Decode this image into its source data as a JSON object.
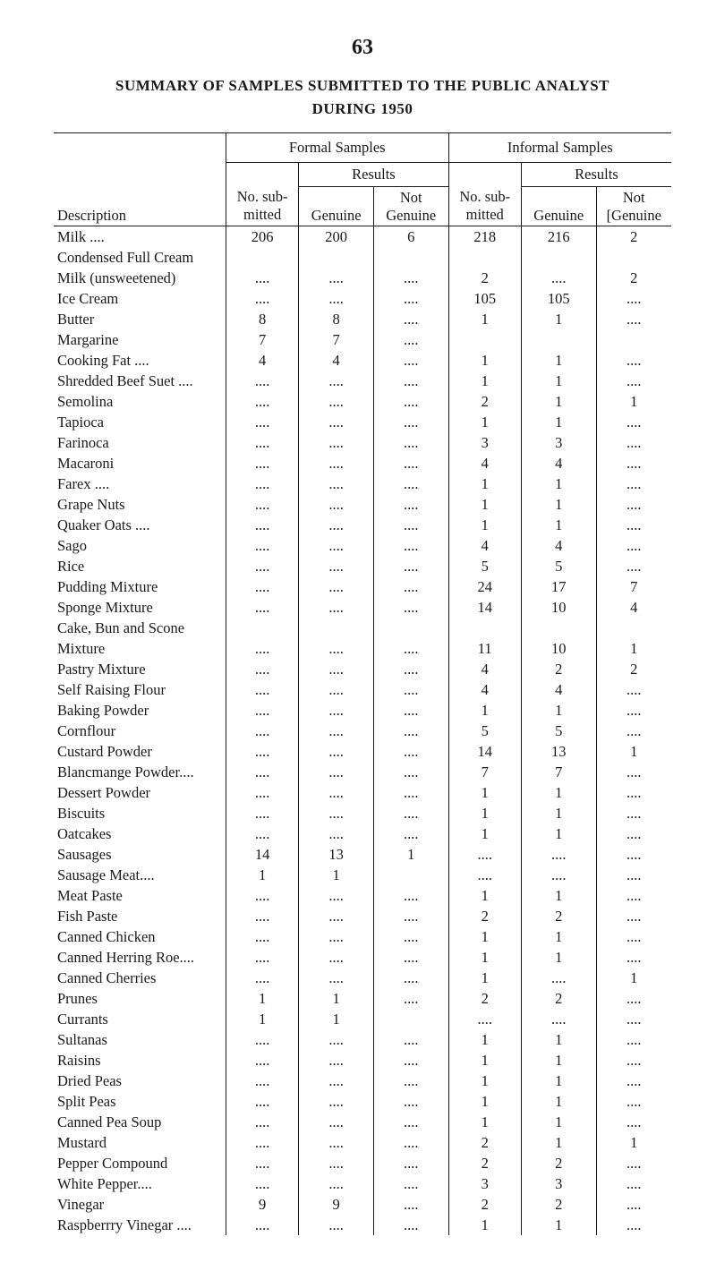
{
  "page_number": "63",
  "title_line1": "SUMMARY OF SAMPLES SUBMITTED TO THE PUBLIC ANALYST",
  "title_line2": "DURING 1950",
  "headers": {
    "formal_samples": "Formal Samples",
    "informal_samples": "Informal Samples",
    "results": "Results",
    "description": "Description",
    "no_submitted": "No. sub-",
    "no_submitted2": "mitted",
    "genuine": "Genuine",
    "not": "Not",
    "not_genuine": "[Genuine"
  },
  "rows": [
    {
      "desc": "Milk ....",
      "indent": false,
      "fn": "206",
      "fg": "200",
      "fng": "6",
      "in": "218",
      "ig": "216",
      "ing": "2"
    },
    {
      "desc": "Condensed Full Cream",
      "indent": false,
      "fn": "",
      "fg": "",
      "fng": "",
      "in": "",
      "ig": "",
      "ing": ""
    },
    {
      "desc": "Milk (unsweetened)",
      "indent": true,
      "fn": "....",
      "fg": "....",
      "fng": "....",
      "in": "2",
      "ig": "....",
      "ing": "2"
    },
    {
      "desc": "Ice Cream",
      "indent": false,
      "fn": "....",
      "fg": "....",
      "fng": "....",
      "in": "105",
      "ig": "105",
      "ing": "...."
    },
    {
      "desc": "Butter",
      "indent": false,
      "fn": "8",
      "fg": "8",
      "fng": "....",
      "in": "1",
      "ig": "1",
      "ing": "...."
    },
    {
      "desc": "Margarine",
      "indent": false,
      "fn": "7",
      "fg": "7",
      "fng": "....",
      "in": "",
      "ig": "",
      "ing": ""
    },
    {
      "desc": "Cooking Fat ....",
      "indent": false,
      "fn": "4",
      "fg": "4",
      "fng": "....",
      "in": "1",
      "ig": "1",
      "ing": "...."
    },
    {
      "desc": "Shredded Beef Suet ....",
      "indent": false,
      "fn": "....",
      "fg": "....",
      "fng": "....",
      "in": "1",
      "ig": "1",
      "ing": "...."
    },
    {
      "desc": "Semolina",
      "indent": false,
      "fn": "....",
      "fg": "....",
      "fng": "....",
      "in": "2",
      "ig": "1",
      "ing": "1"
    },
    {
      "desc": "Tapioca",
      "indent": false,
      "fn": "....",
      "fg": "....",
      "fng": "....",
      "in": "1",
      "ig": "1",
      "ing": "...."
    },
    {
      "desc": "Farinoca",
      "indent": false,
      "fn": "....",
      "fg": "....",
      "fng": "....",
      "in": "3",
      "ig": "3",
      "ing": "...."
    },
    {
      "desc": "Macaroni",
      "indent": false,
      "fn": "....",
      "fg": "....",
      "fng": "....",
      "in": "4",
      "ig": "4",
      "ing": "...."
    },
    {
      "desc": "Farex ....",
      "indent": false,
      "fn": "....",
      "fg": "....",
      "fng": "....",
      "in": "1",
      "ig": "1",
      "ing": "...."
    },
    {
      "desc": "Grape Nuts",
      "indent": false,
      "fn": "....",
      "fg": "....",
      "fng": "....",
      "in": "1",
      "ig": "1",
      "ing": "...."
    },
    {
      "desc": "Quaker Oats ....",
      "indent": false,
      "fn": "....",
      "fg": "....",
      "fng": "....",
      "in": "1",
      "ig": "1",
      "ing": "...."
    },
    {
      "desc": "Sago",
      "indent": false,
      "fn": "....",
      "fg": "....",
      "fng": "....",
      "in": "4",
      "ig": "4",
      "ing": "...."
    },
    {
      "desc": "Rice",
      "indent": false,
      "fn": "....",
      "fg": "....",
      "fng": "....",
      "in": "5",
      "ig": "5",
      "ing": "...."
    },
    {
      "desc": "Pudding Mixture",
      "indent": false,
      "fn": "....",
      "fg": "....",
      "fng": "....",
      "in": "24",
      "ig": "17",
      "ing": "7"
    },
    {
      "desc": "Sponge Mixture",
      "indent": false,
      "fn": "....",
      "fg": "....",
      "fng": "....",
      "in": "14",
      "ig": "10",
      "ing": "4"
    },
    {
      "desc": "Cake, Bun and Scone",
      "indent": false,
      "fn": "",
      "fg": "",
      "fng": "",
      "in": "",
      "ig": "",
      "ing": ""
    },
    {
      "desc": "Mixture",
      "indent": true,
      "fn": "....",
      "fg": "....",
      "fng": "....",
      "in": "11",
      "ig": "10",
      "ing": "1"
    },
    {
      "desc": "Pastry Mixture",
      "indent": false,
      "fn": "....",
      "fg": "....",
      "fng": "....",
      "in": "4",
      "ig": "2",
      "ing": "2"
    },
    {
      "desc": "Self Raising Flour",
      "indent": false,
      "fn": "....",
      "fg": "....",
      "fng": "....",
      "in": "4",
      "ig": "4",
      "ing": "...."
    },
    {
      "desc": "Baking Powder",
      "indent": false,
      "fn": "....",
      "fg": "....",
      "fng": "....",
      "in": "1",
      "ig": "1",
      "ing": "...."
    },
    {
      "desc": "Cornflour",
      "indent": false,
      "fn": "....",
      "fg": "....",
      "fng": "....",
      "in": "5",
      "ig": "5",
      "ing": "...."
    },
    {
      "desc": "Custard Powder",
      "indent": false,
      "fn": "....",
      "fg": "....",
      "fng": "....",
      "in": "14",
      "ig": "13",
      "ing": "1"
    },
    {
      "desc": "Blancmange Powder....",
      "indent": false,
      "fn": "....",
      "fg": "....",
      "fng": "....",
      "in": "7",
      "ig": "7",
      "ing": "...."
    },
    {
      "desc": "Dessert Powder",
      "indent": false,
      "fn": "....",
      "fg": "....",
      "fng": "....",
      "in": "1",
      "ig": "1",
      "ing": "...."
    },
    {
      "desc": "Biscuits",
      "indent": false,
      "fn": "....",
      "fg": "....",
      "fng": "....",
      "in": "1",
      "ig": "1",
      "ing": "...."
    },
    {
      "desc": "Oatcakes",
      "indent": false,
      "fn": "....",
      "fg": "....",
      "fng": "....",
      "in": "1",
      "ig": "1",
      "ing": "...."
    },
    {
      "desc": "Sausages",
      "indent": false,
      "fn": "14",
      "fg": "13",
      "fng": "1",
      "in": "....",
      "ig": "....",
      "ing": "...."
    },
    {
      "desc": "Sausage Meat....",
      "indent": false,
      "fn": "1",
      "fg": "1",
      "fng": "",
      "in": "....",
      "ig": "....",
      "ing": "...."
    },
    {
      "desc": "Meat Paste",
      "indent": false,
      "fn": "....",
      "fg": "....",
      "fng": "....",
      "in": "1",
      "ig": "1",
      "ing": "...."
    },
    {
      "desc": "Fish Paste",
      "indent": false,
      "fn": "....",
      "fg": "....",
      "fng": "....",
      "in": "2",
      "ig": "2",
      "ing": "...."
    },
    {
      "desc": "Canned Chicken",
      "indent": false,
      "fn": "....",
      "fg": "....",
      "fng": "....",
      "in": "1",
      "ig": "1",
      "ing": "...."
    },
    {
      "desc": "Canned Herring Roe....",
      "indent": false,
      "fn": "....",
      "fg": "....",
      "fng": "....",
      "in": "1",
      "ig": "1",
      "ing": "...."
    },
    {
      "desc": "Canned Cherries",
      "indent": false,
      "fn": "....",
      "fg": "....",
      "fng": "....",
      "in": "1",
      "ig": "....",
      "ing": "1"
    },
    {
      "desc": "Prunes",
      "indent": false,
      "fn": "1",
      "fg": "1",
      "fng": "....",
      "in": "2",
      "ig": "2",
      "ing": "...."
    },
    {
      "desc": "Currants",
      "indent": false,
      "fn": "1",
      "fg": "1",
      "fng": "",
      "in": "....",
      "ig": "....",
      "ing": "...."
    },
    {
      "desc": "Sultanas",
      "indent": false,
      "fn": "....",
      "fg": "....",
      "fng": "....",
      "in": "1",
      "ig": "1",
      "ing": "...."
    },
    {
      "desc": "Raisins",
      "indent": false,
      "fn": "....",
      "fg": "....",
      "fng": "....",
      "in": "1",
      "ig": "1",
      "ing": "...."
    },
    {
      "desc": "Dried Peas",
      "indent": false,
      "fn": "....",
      "fg": "....",
      "fng": "....",
      "in": "1",
      "ig": "1",
      "ing": "...."
    },
    {
      "desc": "Split Peas",
      "indent": false,
      "fn": "....",
      "fg": "....",
      "fng": "....",
      "in": "1",
      "ig": "1",
      "ing": "...."
    },
    {
      "desc": "Canned Pea Soup",
      "indent": false,
      "fn": "....",
      "fg": "....",
      "fng": "....",
      "in": "1",
      "ig": "1",
      "ing": "...."
    },
    {
      "desc": "Mustard",
      "indent": false,
      "fn": "....",
      "fg": "....",
      "fng": "....",
      "in": "2",
      "ig": "1",
      "ing": "1"
    },
    {
      "desc": "Pepper Compound",
      "indent": false,
      "fn": "....",
      "fg": "....",
      "fng": "....",
      "in": "2",
      "ig": "2",
      "ing": "...."
    },
    {
      "desc": "White Pepper....",
      "indent": false,
      "fn": "....",
      "fg": "....",
      "fng": "....",
      "in": "3",
      "ig": "3",
      "ing": "...."
    },
    {
      "desc": "Vinegar",
      "indent": false,
      "fn": "9",
      "fg": "9",
      "fng": "....",
      "in": "2",
      "ig": "2",
      "ing": "...."
    },
    {
      "desc": "Raspberrry Vinegar ....",
      "indent": false,
      "fn": "....",
      "fg": "....",
      "fng": "....",
      "in": "1",
      "ig": "1",
      "ing": "...."
    }
  ],
  "styling": {
    "font_family": "Times New Roman",
    "background_color": "#ffffff",
    "text_color": "#1a1a1a",
    "border_color": "#1a1a1a",
    "page_number_fontsize": 24,
    "title_fontsize": 17,
    "table_fontsize": 16.5,
    "col_widths": {
      "desc": 200,
      "num": 78
    }
  }
}
